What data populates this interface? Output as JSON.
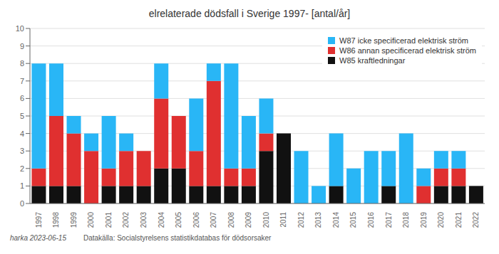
{
  "chart_data": {
    "type": "bar",
    "title": "elrelaterade dödsfall i Sverige 1997-  [antal/år]",
    "categories": [
      "1997",
      "1998",
      "1999",
      "2000",
      "2001",
      "2002",
      "2003",
      "2004",
      "2005",
      "2006",
      "2007",
      "2008",
      "2009",
      "2010",
      "2011",
      "2012",
      "2013",
      "2014",
      "2015",
      "2016",
      "2017",
      "2018",
      "2019",
      "2020",
      "2021",
      "2022"
    ],
    "series": [
      {
        "name": "W85 kraftledningar",
        "color": "#111111",
        "values": [
          1,
          1,
          1,
          0,
          1,
          1,
          1,
          2,
          2,
          1,
          1,
          1,
          1,
          3,
          4,
          0,
          0,
          1,
          0,
          0,
          1,
          0,
          0,
          1,
          1,
          1
        ]
      },
      {
        "name": "W86 annan specificerad elektrisk ström",
        "color": "#e03030",
        "values": [
          1,
          4,
          3,
          3,
          1,
          2,
          2,
          4,
          3,
          2,
          6,
          1,
          1,
          1,
          0,
          0,
          0,
          0,
          0,
          0,
          0,
          0,
          1,
          1,
          1,
          0
        ]
      },
      {
        "name": "W87 icke specificerad elektrisk ström",
        "color": "#29b6f6",
        "values": [
          6,
          3,
          1,
          1,
          3,
          1,
          0,
          2,
          0,
          3,
          1,
          6,
          3,
          2,
          0,
          3,
          1,
          3,
          2,
          3,
          2,
          4,
          1,
          1,
          1,
          0
        ]
      }
    ],
    "stacked": true,
    "ylim": [
      0,
      10
    ],
    "yticks": [
      0,
      1,
      2,
      3,
      4,
      5,
      6,
      7,
      8,
      9,
      10
    ],
    "grid": true,
    "legend": "upper right",
    "annotations": [
      "harka 2023-06-15",
      "Datakälla: Socialstyrelsens statistikdatabas för dödsorsaker"
    ]
  }
}
